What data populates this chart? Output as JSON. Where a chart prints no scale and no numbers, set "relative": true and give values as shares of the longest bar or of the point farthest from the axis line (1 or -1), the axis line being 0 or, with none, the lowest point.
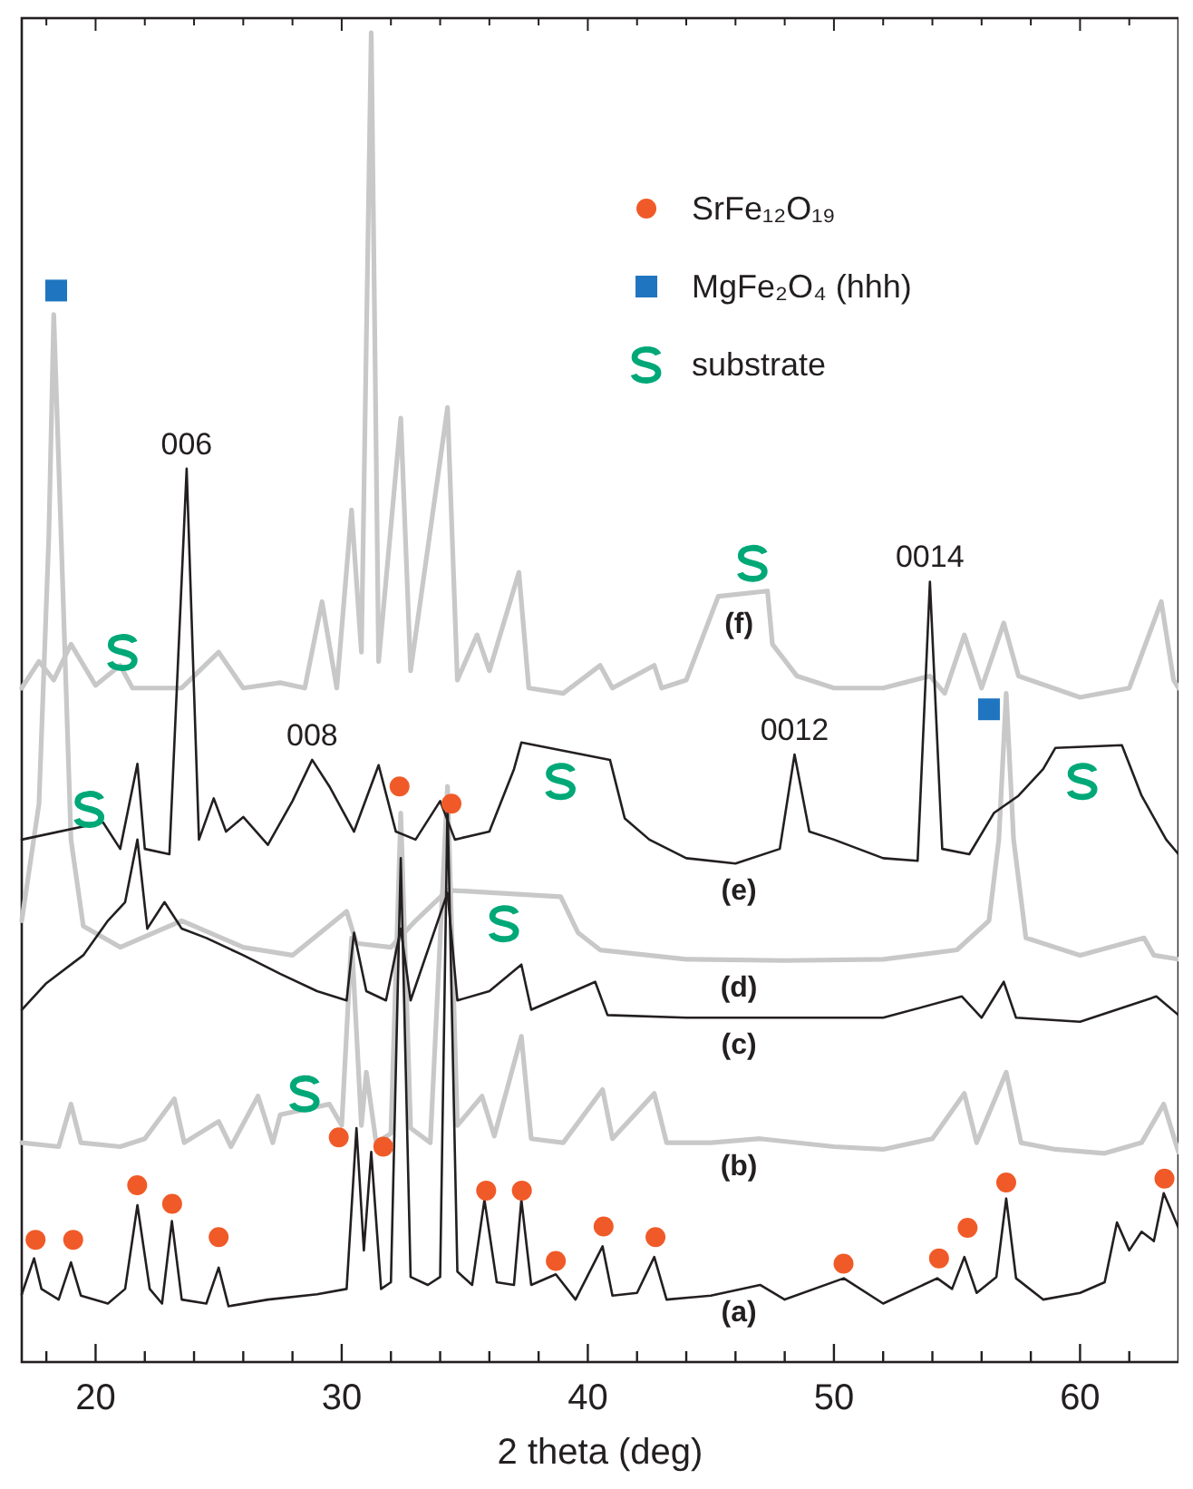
{
  "chart_data": {
    "type": "line",
    "relative": true,
    "xlabel": "2 theta (deg)",
    "xlim": [
      17,
      64
    ],
    "xticks": [
      {
        "value": 18,
        "label": null
      },
      20,
      {
        "value": 22,
        "label": null
      },
      {
        "value": 24,
        "label": null
      },
      {
        "value": 26,
        "label": null
      },
      {
        "value": 28,
        "label": null
      },
      30,
      {
        "value": 32,
        "label": null
      },
      {
        "value": 34,
        "label": null
      },
      {
        "value": 36,
        "label": null
      },
      {
        "value": 38,
        "label": null
      },
      40,
      {
        "value": 42,
        "label": null
      },
      {
        "value": 44,
        "label": null
      },
      {
        "value": 46,
        "label": null
      },
      {
        "value": 48,
        "label": null
      },
      50,
      {
        "value": 52,
        "label": null
      },
      {
        "value": 54,
        "label": null
      },
      {
        "value": 56,
        "label": null
      },
      {
        "value": 58,
        "label": null
      },
      60,
      {
        "value": 62,
        "label": null
      }
    ],
    "tick_labels": "x",
    "grid": false,
    "legend": "top right",
    "line_style": "solid",
    "series": [
      {
        "name": "(a)",
        "color": "#231f20",
        "x": [
          17,
          17.5,
          17.8,
          18.5,
          19.0,
          19.4,
          20.5,
          21.2,
          21.7,
          22.2,
          22.7,
          23.1,
          23.5,
          24.5,
          25.0,
          25.4,
          27,
          29,
          30.2,
          30.6,
          30.9,
          31.2,
          31.6,
          32.0,
          32.4,
          32.8,
          33.5,
          34.0,
          34.3,
          34.7,
          35.3,
          35.8,
          36.3,
          37.0,
          37.3,
          37.7,
          38.7,
          39.5,
          40.6,
          41.0,
          42.0,
          42.7,
          43.2,
          45,
          47,
          48,
          50.4,
          52,
          54.2,
          54.8,
          55.3,
          55.8,
          56.6,
          57.0,
          57.4,
          58.5,
          60,
          61,
          61.5,
          62,
          62.5,
          63,
          63.4,
          64
        ],
        "values": [
          0.051,
          0.078,
          0.055,
          0.047,
          0.075,
          0.05,
          0.044,
          0.055,
          0.118,
          0.055,
          0.044,
          0.106,
          0.047,
          0.044,
          0.071,
          0.042,
          0.047,
          0.051,
          0.055,
          0.176,
          0.084,
          0.158,
          0.055,
          0.06,
          0.379,
          0.064,
          0.058,
          0.064,
          0.42,
          0.068,
          0.058,
          0.122,
          0.06,
          0.058,
          0.122,
          0.058,
          0.066,
          0.047,
          0.087,
          0.05,
          0.052,
          0.079,
          0.047,
          0.05,
          0.058,
          0.047,
          0.063,
          0.044,
          0.063,
          0.055,
          0.079,
          0.052,
          0.064,
          0.123,
          0.063,
          0.047,
          0.052,
          0.06,
          0.105,
          0.084,
          0.098,
          0.091,
          0.127,
          0.101
        ]
      },
      {
        "name": "(b)",
        "color": "#c8c8c8",
        "x": [
          17,
          18.5,
          19.0,
          19.4,
          21,
          22,
          23.2,
          23.6,
          25.0,
          25.5,
          26.6,
          27.2,
          27.5,
          29.5,
          30.0,
          30.4,
          30.8,
          31.0,
          31.4,
          32.0,
          32.4,
          32.8,
          33.6,
          34.3,
          34.7,
          35.7,
          36.2,
          37.3,
          37.7,
          39,
          40.6,
          41,
          42.7,
          43.2,
          45,
          47,
          50,
          52,
          54,
          55.3,
          55.8,
          57.0,
          57.6,
          59,
          61,
          62.5,
          63.4,
          64
        ],
        "values": [
          0.165,
          0.162,
          0.194,
          0.165,
          0.162,
          0.168,
          0.198,
          0.165,
          0.181,
          0.162,
          0.2,
          0.165,
          0.186,
          0.194,
          0.178,
          0.319,
          0.178,
          0.218,
          0.165,
          0.172,
          0.413,
          0.176,
          0.165,
          0.433,
          0.178,
          0.2,
          0.17,
          0.245,
          0.168,
          0.165,
          0.205,
          0.168,
          0.202,
          0.165,
          0.165,
          0.168,
          0.162,
          0.16,
          0.168,
          0.202,
          0.165,
          0.218,
          0.165,
          0.16,
          0.157,
          0.165,
          0.194,
          0.158
        ]
      },
      {
        "name": "(c)",
        "color": "#231f20",
        "x": [
          17,
          18,
          19.5,
          20.5,
          21.2,
          21.7,
          22.1,
          22.8,
          23.5,
          24.5,
          26,
          27.5,
          29,
          30.2,
          30.5,
          31,
          31.8,
          32.4,
          32.8,
          34.3,
          34.7,
          36,
          37.3,
          37.7,
          40.3,
          40.8,
          44,
          48,
          52,
          55.2,
          56,
          56.9,
          57.4,
          60,
          63.1,
          64
        ],
        "values": [
          0.265,
          0.285,
          0.306,
          0.332,
          0.346,
          0.393,
          0.326,
          0.346,
          0.326,
          0.319,
          0.306,
          0.292,
          0.279,
          0.272,
          0.323,
          0.279,
          0.272,
          0.326,
          0.272,
          0.353,
          0.272,
          0.279,
          0.299,
          0.265,
          0.286,
          0.261,
          0.259,
          0.259,
          0.259,
          0.275,
          0.259,
          0.286,
          0.259,
          0.256,
          0.275,
          0.261
        ]
      },
      {
        "name": "(d)",
        "color": "#c8c8c8",
        "x": [
          17,
          17.7,
          18.1,
          18.3,
          18.6,
          19.0,
          19.5,
          21,
          23.5,
          26,
          28,
          30.2,
          30.6,
          32,
          33,
          34.3,
          38.9,
          39.6,
          40.5,
          44,
          48,
          52,
          55,
          56.3,
          56.7,
          57.0,
          57.3,
          57.8,
          60,
          62.6,
          63,
          64
        ],
        "values": [
          0.332,
          0.42,
          0.621,
          0.788,
          0.621,
          0.393,
          0.328,
          0.312,
          0.332,
          0.312,
          0.306,
          0.339,
          0.315,
          0.312,
          0.332,
          0.355,
          0.35,
          0.323,
          0.31,
          0.303,
          0.302,
          0.303,
          0.31,
          0.332,
          0.393,
          0.503,
          0.393,
          0.319,
          0.306,
          0.319,
          0.306,
          0.303
        ]
      },
      {
        "name": "(e)",
        "color": "#231f20",
        "x": [
          17,
          20.3,
          21.0,
          21.7,
          22.0,
          23.0,
          23.7,
          24.2,
          24.8,
          25.3,
          26,
          27,
          28,
          28.8,
          29.5,
          30.5,
          31.5,
          32.2,
          33,
          34,
          34.6,
          36,
          37,
          37.3,
          40.9,
          41.5,
          42.5,
          44,
          46,
          47.8,
          48.4,
          49,
          50,
          52,
          53.4,
          53.9,
          54.4,
          55.5,
          56.5,
          57.5,
          58.5,
          59,
          61.7,
          62.5,
          63.5,
          64
        ],
        "values": [
          0.393,
          0.406,
          0.386,
          0.45,
          0.386,
          0.382,
          0.672,
          0.393,
          0.424,
          0.399,
          0.41,
          0.389,
          0.422,
          0.453,
          0.433,
          0.399,
          0.449,
          0.399,
          0.393,
          0.422,
          0.393,
          0.399,
          0.446,
          0.466,
          0.453,
          0.409,
          0.393,
          0.379,
          0.375,
          0.386,
          0.457,
          0.399,
          0.393,
          0.379,
          0.377,
          0.587,
          0.386,
          0.382,
          0.413,
          0.426,
          0.446,
          0.462,
          0.464,
          0.426,
          0.393,
          0.382
        ]
      },
      {
        "name": "(f)",
        "color": "#c8c8c8",
        "x": [
          17,
          17.7,
          18.3,
          19.0,
          20,
          21,
          21.5,
          23.5,
          25.0,
          26,
          27.5,
          28.5,
          29.2,
          29.8,
          30.4,
          30.8,
          31.2,
          31.5,
          32.4,
          32.8,
          34.3,
          34.7,
          35.5,
          36,
          37.2,
          37.6,
          39,
          40.5,
          41,
          42.7,
          43,
          44,
          45.3,
          47.3,
          47.5,
          48.5,
          50,
          52,
          53.9,
          54.5,
          55.3,
          56,
          56.9,
          57.5,
          60,
          62,
          63.3,
          63.8,
          64
        ],
        "values": [
          0.507,
          0.527,
          0.513,
          0.54,
          0.509,
          0.524,
          0.507,
          0.507,
          0.534,
          0.507,
          0.511,
          0.507,
          0.572,
          0.507,
          0.641,
          0.534,
          1,
          0.527,
          0.71,
          0.52,
          0.718,
          0.513,
          0.547,
          0.52,
          0.594,
          0.507,
          0.503,
          0.524,
          0.507,
          0.524,
          0.507,
          0.513,
          0.576,
          0.58,
          0.54,
          0.516,
          0.507,
          0.507,
          0.516,
          0.503,
          0.547,
          0.507,
          0.556,
          0.516,
          0.5,
          0.507,
          0.572,
          0.513,
          0.507
        ]
      },
      {
        "name": "SrFe₁₂O₁₉",
        "type": "scatter",
        "marker": "circle",
        "color": "#f05a28",
        "x": [
          17.56,
          19.09,
          21.69,
          23.11,
          25.0,
          29.88,
          31.69,
          35.87,
          37.32,
          38.7,
          40.64,
          42.75,
          50.39,
          54.27,
          55.43,
          57.0,
          63.43,
          32.35,
          34.46
        ],
        "values": [
          0.092,
          0.092,
          0.133,
          0.119,
          0.094,
          0.169,
          0.162,
          0.129,
          0.129,
          0.076,
          0.102,
          0.094,
          0.074,
          0.078,
          0.101,
          0.135,
          0.138,
          0.433,
          0.42
        ]
      },
      {
        "name": "MgFe₂O₄ (hhh)",
        "type": "scatter",
        "marker": "square",
        "color": "#1f75c0",
        "x": [
          18.4,
          56.3
        ],
        "values": [
          0.806,
          0.491
        ]
      },
      {
        "name": "substrate",
        "type": "scatter",
        "color": "#00a878",
        "x": [
          19.75,
          21.1,
          28.5,
          36.6,
          38.9,
          46.7,
          60.1
        ],
        "values": [
          0.416,
          0.534,
          0.202,
          0.33,
          0.437,
          0.601,
          0.437
        ]
      }
    ],
    "annotations": [
      {
        "text": "006",
        "x": 23.7,
        "y": 0.672
      },
      {
        "text": "008",
        "x": 28.8,
        "y": 0.453
      },
      {
        "text": "0012",
        "x": 48.4,
        "y": 0.457
      },
      {
        "text": "0014",
        "x": 53.9,
        "y": 0.587
      }
    ]
  }
}
